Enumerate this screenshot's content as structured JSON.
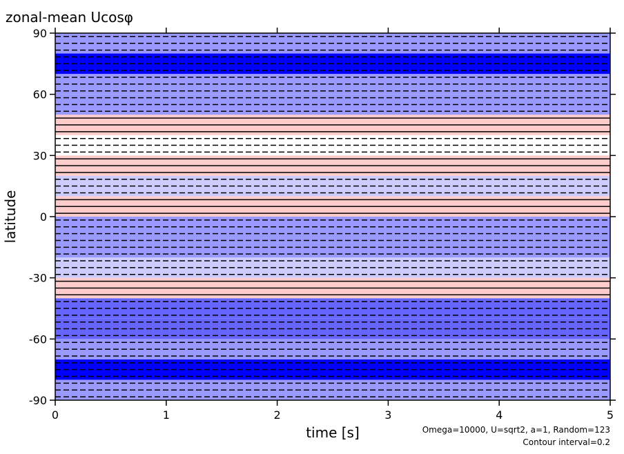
{
  "chart_data": {
    "type": "heatmap",
    "title": "zonal-mean Ucosφ",
    "xlabel": "time [s]",
    "ylabel": "latitude",
    "annotations": [
      "Omega=10000, U=sqrt2, a=1, Random=123",
      "Contour interval=0.2"
    ],
    "xlim": [
      0,
      5
    ],
    "xticks": [
      0,
      1,
      2,
      3,
      4,
      5
    ],
    "ylim": [
      -90,
      90
    ],
    "yticks": [
      -90,
      -60,
      -30,
      0,
      30,
      60,
      90
    ],
    "latitudes": [
      -85,
      -75,
      -65,
      -55,
      -45,
      -35,
      -25,
      -15,
      -5,
      5,
      15,
      25,
      35,
      45,
      55,
      65,
      75,
      85
    ],
    "values": [
      0.4,
      1.0,
      0.4,
      0.6,
      0.6,
      -0.2,
      0.2,
      0.4,
      0.4,
      -0.2,
      0.2,
      -0.2,
      0.0,
      -0.2,
      0.4,
      0.4,
      1.0,
      0.4
    ],
    "clim": [
      -1,
      1
    ],
    "color_high": "#0000ff",
    "color_low": "#ff0000"
  }
}
